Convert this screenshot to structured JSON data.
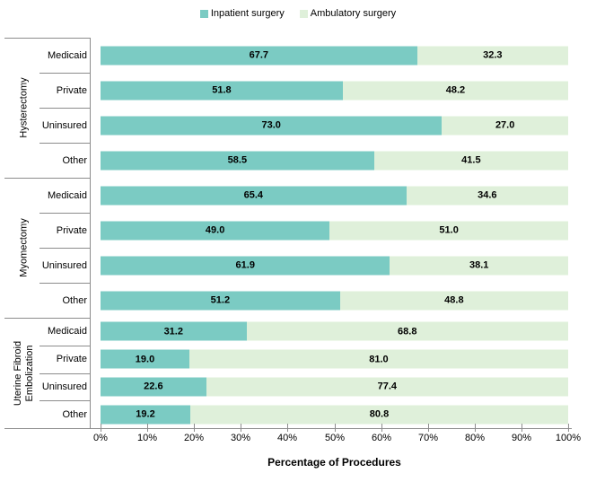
{
  "legend": {
    "items": [
      {
        "label": "Inpatient surgery"
      },
      {
        "label": "Ambulatory surgery"
      }
    ]
  },
  "colors": {
    "inpatient": "#7BCBC3",
    "ambulatory": "#DFF0DA",
    "axis_line": "#8C8C8C",
    "value_text": "#000000"
  },
  "chart_data": {
    "type": "bar",
    "stacked": true,
    "orientation": "horizontal",
    "xlabel": "Percentage of Procedures",
    "xlim": [
      0,
      100
    ],
    "x_ticks": [
      "0%",
      "10%",
      "20%",
      "30%",
      "40%",
      "50%",
      "60%",
      "70%",
      "80%",
      "90%",
      "100%"
    ],
    "legend_position": "top",
    "grid": false,
    "series_names": [
      "Inpatient surgery",
      "Ambulatory surgery"
    ],
    "groups": [
      {
        "label": "Hysterectomy",
        "rows": [
          {
            "category": "Medicaid",
            "inpatient": "67.7",
            "ambulatory": "32.3"
          },
          {
            "category": "Private",
            "inpatient": "51.8",
            "ambulatory": "48.2"
          },
          {
            "category": "Uninsured",
            "inpatient": "73.0",
            "ambulatory": "27.0"
          },
          {
            "category": "Other",
            "inpatient": "58.5",
            "ambulatory": "41.5"
          }
        ]
      },
      {
        "label": "Myomectomy",
        "rows": [
          {
            "category": "Medicaid",
            "inpatient": "65.4",
            "ambulatory": "34.6"
          },
          {
            "category": "Private",
            "inpatient": "49.0",
            "ambulatory": "51.0"
          },
          {
            "category": "Uninsured",
            "inpatient": "61.9",
            "ambulatory": "38.1"
          },
          {
            "category": "Other",
            "inpatient": "51.2",
            "ambulatory": "48.8"
          }
        ]
      },
      {
        "label": "Uterine Fibroid Embolization",
        "rows": [
          {
            "category": "Medicaid",
            "inpatient": "31.2",
            "ambulatory": "68.8"
          },
          {
            "category": "Private",
            "inpatient": "19.0",
            "ambulatory": "81.0"
          },
          {
            "category": "Uninsured",
            "inpatient": "22.6",
            "ambulatory": "77.4"
          },
          {
            "category": "Other",
            "inpatient": "19.2",
            "ambulatory": "80.8"
          }
        ]
      }
    ]
  }
}
